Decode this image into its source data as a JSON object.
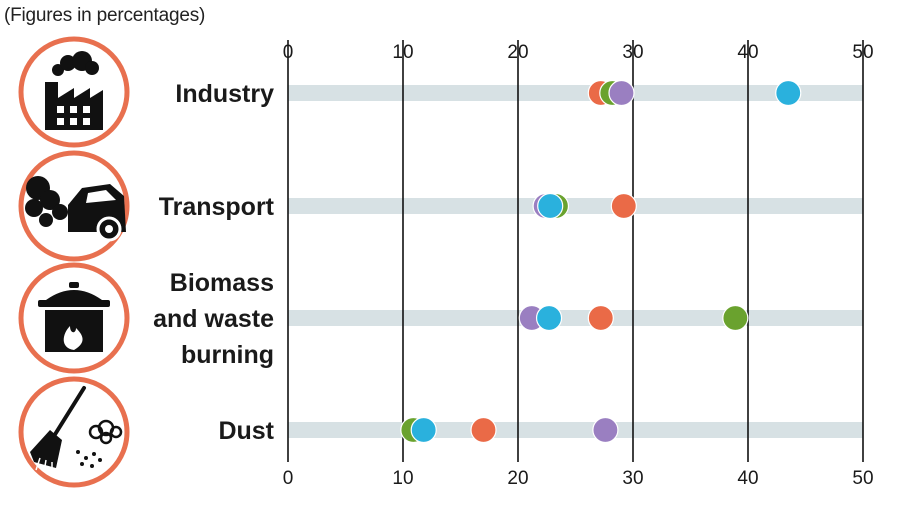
{
  "note": "(Figures in percentages)",
  "chart_data": {
    "type": "dot",
    "xlim": [
      0,
      50
    ],
    "ticks": [
      0,
      10,
      20,
      30,
      40,
      50
    ],
    "categories": [
      {
        "label_lines": [
          "Industry"
        ],
        "icon": "factory-icon"
      },
      {
        "label_lines": [
          "Transport"
        ],
        "icon": "car-exhaust-icon"
      },
      {
        "label_lines": [
          "Biomass",
          "and waste",
          "burning"
        ],
        "icon": "cooking-pot-fire-icon"
      },
      {
        "label_lines": [
          "Dust"
        ],
        "icon": "broom-dust-icon"
      }
    ],
    "series": [
      {
        "color": "#ea6a47",
        "values": [
          27.2,
          29.2,
          27.2,
          17.0
        ]
      },
      {
        "color": "#6aa22e",
        "values": [
          28.2,
          23.3,
          38.9,
          10.9
        ]
      },
      {
        "color": "#9a7fc1",
        "values": [
          29.0,
          22.4,
          21.2,
          27.6
        ]
      },
      {
        "color": "#2ab1dd",
        "values": [
          43.5,
          22.8,
          22.7,
          11.8
        ]
      }
    ]
  }
}
